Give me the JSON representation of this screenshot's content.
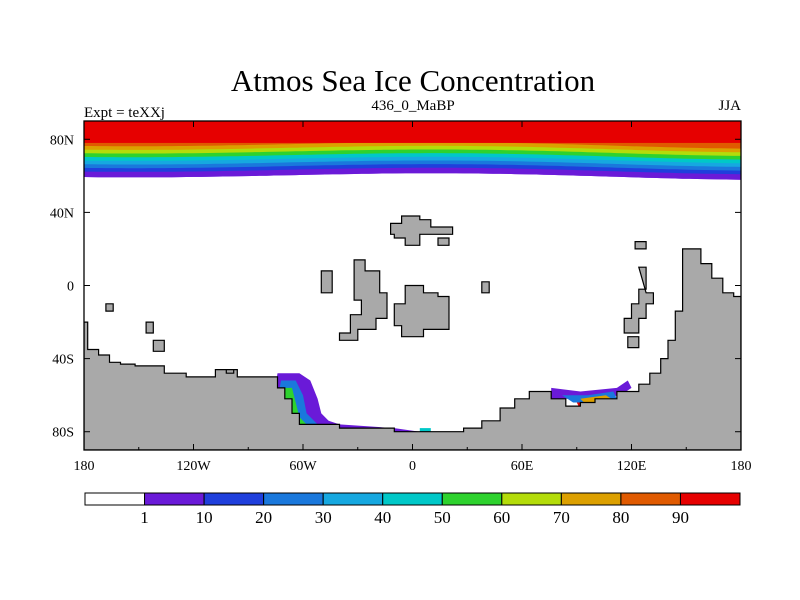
{
  "chart_data": {
    "type": "heatmap",
    "title": "Atmos Sea Ice Concentration",
    "subtitle_left": "Expt = teXXj",
    "subtitle_center": "436_0_MaBP",
    "subtitle_right": "JJA",
    "x_ticks": [
      {
        "value": -180,
        "label": "180"
      },
      {
        "value": -120,
        "label": "120W"
      },
      {
        "value": -60,
        "label": "60W"
      },
      {
        "value": 0,
        "label": "0"
      },
      {
        "value": 60,
        "label": "60E"
      },
      {
        "value": 120,
        "label": "120E"
      },
      {
        "value": 180,
        "label": "180"
      }
    ],
    "y_ticks": [
      {
        "value": 80,
        "label": "80N"
      },
      {
        "value": 40,
        "label": "40N"
      },
      {
        "value": 0,
        "label": "0"
      },
      {
        "value": -40,
        "label": "40S"
      },
      {
        "value": -80,
        "label": "80S"
      }
    ],
    "xlim": [
      -180,
      180
    ],
    "ylim": [
      -90,
      90
    ],
    "colorbar": {
      "colors": [
        "#ffffff",
        "#6a1ad8",
        "#1f3fdc",
        "#1a78dc",
        "#16a8e0",
        "#00c8c8",
        "#2ed22e",
        "#b4dc0a",
        "#dca000",
        "#e05a00",
        "#e60000"
      ],
      "labels": [
        "1",
        "10",
        "20",
        "30",
        "40",
        "50",
        "60",
        "70",
        "80",
        "90"
      ]
    },
    "arctic_bands": [
      {
        "lat": 60,
        "color": "#6a1ad8"
      },
      {
        "lat": 63,
        "color": "#1f3fdc"
      },
      {
        "lat": 65,
        "color": "#1a78dc"
      },
      {
        "lat": 67,
        "color": "#16a8e0"
      },
      {
        "lat": 69,
        "color": "#00c8c8"
      },
      {
        "lat": 71,
        "color": "#2ed22e"
      },
      {
        "lat": 73,
        "color": "#b4dc0a"
      },
      {
        "lat": 75,
        "color": "#dca000"
      },
      {
        "lat": 77,
        "color": "#e05a00"
      }
    ],
    "land_color": "#a9a9a9",
    "lands": [
      {
        "name": "gondwana-west",
        "points": [
          [
            -180,
            -20
          ],
          [
            -178,
            -20
          ],
          [
            -178,
            -35
          ],
          [
            -172,
            -35
          ],
          [
            -172,
            -38
          ],
          [
            -166,
            -38
          ],
          [
            -166,
            -42
          ],
          [
            -160,
            -42
          ],
          [
            -160,
            -43
          ],
          [
            -152,
            -43
          ],
          [
            -152,
            -44
          ],
          [
            -136,
            -44
          ],
          [
            -136,
            -48
          ],
          [
            -124,
            -48
          ],
          [
            -124,
            -50
          ],
          [
            -108,
            -50
          ],
          [
            -108,
            -46
          ],
          [
            -96,
            -46
          ],
          [
            -96,
            -50
          ],
          [
            -74,
            -50
          ],
          [
            -74,
            -56
          ],
          [
            -70,
            -56
          ],
          [
            -70,
            -62
          ],
          [
            -66,
            -62
          ],
          [
            -66,
            -70
          ],
          [
            -62,
            -70
          ],
          [
            -62,
            -76
          ],
          [
            -40,
            -76
          ],
          [
            -40,
            -78
          ],
          [
            -10,
            -78
          ],
          [
            -10,
            -80
          ],
          [
            28,
            -80
          ],
          [
            28,
            -78
          ],
          [
            38,
            -78
          ],
          [
            38,
            -74
          ],
          [
            48,
            -74
          ],
          [
            48,
            -67
          ],
          [
            56,
            -67
          ],
          [
            56,
            -62
          ],
          [
            64,
            -62
          ],
          [
            64,
            -58
          ],
          [
            76,
            -58
          ],
          [
            76,
            -62
          ],
          [
            84,
            -62
          ],
          [
            84,
            -66
          ],
          [
            92,
            -66
          ],
          [
            92,
            -64
          ],
          [
            100,
            -64
          ],
          [
            100,
            -62
          ],
          [
            112,
            -62
          ],
          [
            112,
            -58
          ],
          [
            124,
            -58
          ],
          [
            124,
            -54
          ],
          [
            130,
            -54
          ],
          [
            130,
            -48
          ],
          [
            136,
            -48
          ],
          [
            136,
            -40
          ],
          [
            140,
            -40
          ],
          [
            140,
            -30
          ],
          [
            144,
            -30
          ],
          [
            144,
            -14
          ],
          [
            148,
            -14
          ],
          [
            148,
            20
          ],
          [
            158,
            20
          ],
          [
            158,
            12
          ],
          [
            164,
            12
          ],
          [
            164,
            4
          ],
          [
            170,
            4
          ],
          [
            170,
            -4
          ],
          [
            176,
            -4
          ],
          [
            176,
            -6
          ],
          [
            180,
            -6
          ],
          [
            180,
            -90
          ],
          [
            -180,
            -90
          ]
        ]
      },
      {
        "name": "island-a",
        "points": [
          [
            -168,
            -10
          ],
          [
            -164,
            -10
          ],
          [
            -164,
            -14
          ],
          [
            -168,
            -14
          ]
        ]
      },
      {
        "name": "island-b",
        "points": [
          [
            -146,
            -20
          ],
          [
            -142,
            -20
          ],
          [
            -142,
            -26
          ],
          [
            -146,
            -26
          ]
        ]
      },
      {
        "name": "island-c",
        "points": [
          [
            -142,
            -30
          ],
          [
            -136,
            -30
          ],
          [
            -136,
            -36
          ],
          [
            -142,
            -36
          ]
        ]
      },
      {
        "name": "island-d",
        "points": [
          [
            -102,
            -46
          ],
          [
            -98,
            -46
          ],
          [
            -98,
            -48
          ],
          [
            -102,
            -48
          ]
        ]
      },
      {
        "name": "continent-north-a",
        "points": [
          [
            -50,
            8
          ],
          [
            -44,
            8
          ],
          [
            -44,
            -4
          ],
          [
            -50,
            -4
          ]
        ]
      },
      {
        "name": "continent-north-b",
        "points": [
          [
            -32,
            14
          ],
          [
            -26,
            14
          ],
          [
            -26,
            8
          ],
          [
            -18,
            8
          ],
          [
            -18,
            -4
          ],
          [
            -14,
            -4
          ],
          [
            -14,
            -18
          ],
          [
            -20,
            -18
          ],
          [
            -20,
            -24
          ],
          [
            -30,
            -24
          ],
          [
            -30,
            -30
          ],
          [
            -40,
            -30
          ],
          [
            -40,
            -26
          ],
          [
            -34,
            -26
          ],
          [
            -34,
            -16
          ],
          [
            -28,
            -16
          ],
          [
            -28,
            -8
          ],
          [
            -32,
            -8
          ]
        ]
      },
      {
        "name": "continent-north-c",
        "points": [
          [
            -4,
            0
          ],
          [
            6,
            0
          ],
          [
            6,
            -4
          ],
          [
            14,
            -4
          ],
          [
            14,
            -6
          ],
          [
            20,
            -6
          ],
          [
            20,
            -24
          ],
          [
            6,
            -24
          ],
          [
            6,
            -28
          ],
          [
            -6,
            -28
          ],
          [
            -6,
            -22
          ],
          [
            -10,
            -22
          ],
          [
            -10,
            -10
          ],
          [
            -4,
            -10
          ]
        ]
      },
      {
        "name": "continent-north-d",
        "points": [
          [
            -12,
            34
          ],
          [
            -6,
            34
          ],
          [
            -6,
            38
          ],
          [
            4,
            38
          ],
          [
            4,
            36
          ],
          [
            10,
            36
          ],
          [
            10,
            32
          ],
          [
            22,
            32
          ],
          [
            22,
            28
          ],
          [
            4,
            28
          ],
          [
            4,
            22
          ],
          [
            -4,
            22
          ],
          [
            -4,
            26
          ],
          [
            -10,
            26
          ],
          [
            -10,
            28
          ],
          [
            -12,
            28
          ]
        ]
      },
      {
        "name": "continent-north-e",
        "points": [
          [
            14,
            26
          ],
          [
            20,
            26
          ],
          [
            20,
            22
          ],
          [
            14,
            22
          ]
        ]
      },
      {
        "name": "island-e",
        "points": [
          [
            38,
            2
          ],
          [
            42,
            2
          ],
          [
            42,
            -4
          ],
          [
            38,
            -4
          ]
        ]
      },
      {
        "name": "continent-east-a",
        "points": [
          [
            122,
            24
          ],
          [
            128,
            24
          ],
          [
            128,
            20
          ],
          [
            122,
            20
          ]
        ]
      },
      {
        "name": "continent-east-b",
        "points": [
          [
            124,
            10
          ],
          [
            128,
            10
          ],
          [
            128,
            -2
          ],
          [
            124,
            -2
          ],
          [
            124,
            -10
          ],
          [
            120,
            -10
          ],
          [
            120,
            -18
          ],
          [
            116,
            -18
          ],
          [
            116,
            -26
          ],
          [
            124,
            -26
          ],
          [
            124,
            -18
          ],
          [
            128,
            -18
          ],
          [
            128,
            -10
          ],
          [
            132,
            -10
          ],
          [
            132,
            -4
          ],
          [
            128,
            -4
          ]
        ]
      },
      {
        "name": "continent-east-c",
        "points": [
          [
            118,
            -28
          ],
          [
            124,
            -28
          ],
          [
            124,
            -34
          ],
          [
            118,
            -34
          ]
        ]
      }
    ],
    "ice_regions": [
      {
        "color": "#6a1ad8",
        "points": [
          [
            -74,
            -48
          ],
          [
            -62,
            -48
          ],
          [
            -56,
            -52
          ],
          [
            -52,
            -62
          ],
          [
            -50,
            -70
          ],
          [
            -46,
            -74
          ],
          [
            -40,
            -76
          ],
          [
            -10,
            -78
          ],
          [
            4,
            -80
          ],
          [
            -62,
            -83
          ],
          [
            -68,
            -80
          ],
          [
            -74,
            -74
          ],
          [
            -76,
            -60
          ]
        ]
      },
      {
        "color": "#1a78dc",
        "points": [
          [
            -72,
            -52
          ],
          [
            -64,
            -52
          ],
          [
            -60,
            -60
          ],
          [
            -58,
            -70
          ],
          [
            -52,
            -76
          ],
          [
            -40,
            -78
          ],
          [
            -20,
            -80
          ],
          [
            -62,
            -82
          ],
          [
            -70,
            -76
          ],
          [
            -74,
            -62
          ]
        ]
      },
      {
        "color": "#2ed22e",
        "points": [
          [
            -70,
            -56
          ],
          [
            -66,
            -56
          ],
          [
            -64,
            -64
          ],
          [
            -62,
            -72
          ],
          [
            -56,
            -78
          ],
          [
            -40,
            -80
          ],
          [
            -64,
            -82
          ],
          [
            -70,
            -72
          ]
        ]
      },
      {
        "color": "#dca000",
        "points": [
          [
            -68,
            -62
          ],
          [
            -66,
            -68
          ],
          [
            -64,
            -76
          ],
          [
            -58,
            -80
          ],
          [
            -66,
            -82
          ]
        ]
      },
      {
        "color": "#e60000",
        "points": [
          [
            -74,
            -78
          ],
          [
            -60,
            -78
          ],
          [
            -52,
            -80
          ],
          [
            -40,
            -82
          ],
          [
            -74,
            -82
          ]
        ]
      },
      {
        "color": "#6a1ad8",
        "points": [
          [
            76,
            -56
          ],
          [
            92,
            -58
          ],
          [
            112,
            -56
          ],
          [
            118,
            -52
          ],
          [
            120,
            -56
          ],
          [
            114,
            -60
          ],
          [
            100,
            -62
          ],
          [
            84,
            -62
          ],
          [
            76,
            -62
          ]
        ]
      },
      {
        "color": "#1a78dc",
        "points": [
          [
            82,
            -60
          ],
          [
            96,
            -60
          ],
          [
            110,
            -58
          ],
          [
            112,
            -62
          ],
          [
            100,
            -64
          ],
          [
            88,
            -64
          ]
        ]
      },
      {
        "color": "#dca000",
        "points": [
          [
            92,
            -62
          ],
          [
            106,
            -60
          ],
          [
            112,
            -64
          ],
          [
            108,
            -66
          ],
          [
            96,
            -66
          ]
        ]
      },
      {
        "color": "#e60000",
        "points": [
          [
            90,
            -64
          ],
          [
            104,
            -64
          ],
          [
            112,
            -66
          ],
          [
            124,
            -68
          ],
          [
            124,
            -74
          ],
          [
            112,
            -72
          ],
          [
            98,
            -70
          ],
          [
            92,
            -68
          ]
        ]
      },
      {
        "color": "#e60000",
        "points": [
          [
            -122,
            -50
          ],
          [
            -118,
            -50
          ],
          [
            -118,
            -54
          ],
          [
            -122,
            -54
          ]
        ]
      },
      {
        "color": "#dca000",
        "points": [
          [
            -100,
            -52
          ],
          [
            -96,
            -52
          ],
          [
            -96,
            -56
          ],
          [
            -100,
            -56
          ]
        ]
      },
      {
        "color": "#2ed22e",
        "points": [
          [
            -120,
            -50
          ],
          [
            -118,
            -50
          ],
          [
            -118,
            -52
          ],
          [
            -120,
            -52
          ]
        ]
      },
      {
        "color": "#00c8c8",
        "points": [
          [
            4,
            -78
          ],
          [
            10,
            -78
          ],
          [
            10,
            -80
          ],
          [
            4,
            -80
          ]
        ]
      }
    ]
  }
}
